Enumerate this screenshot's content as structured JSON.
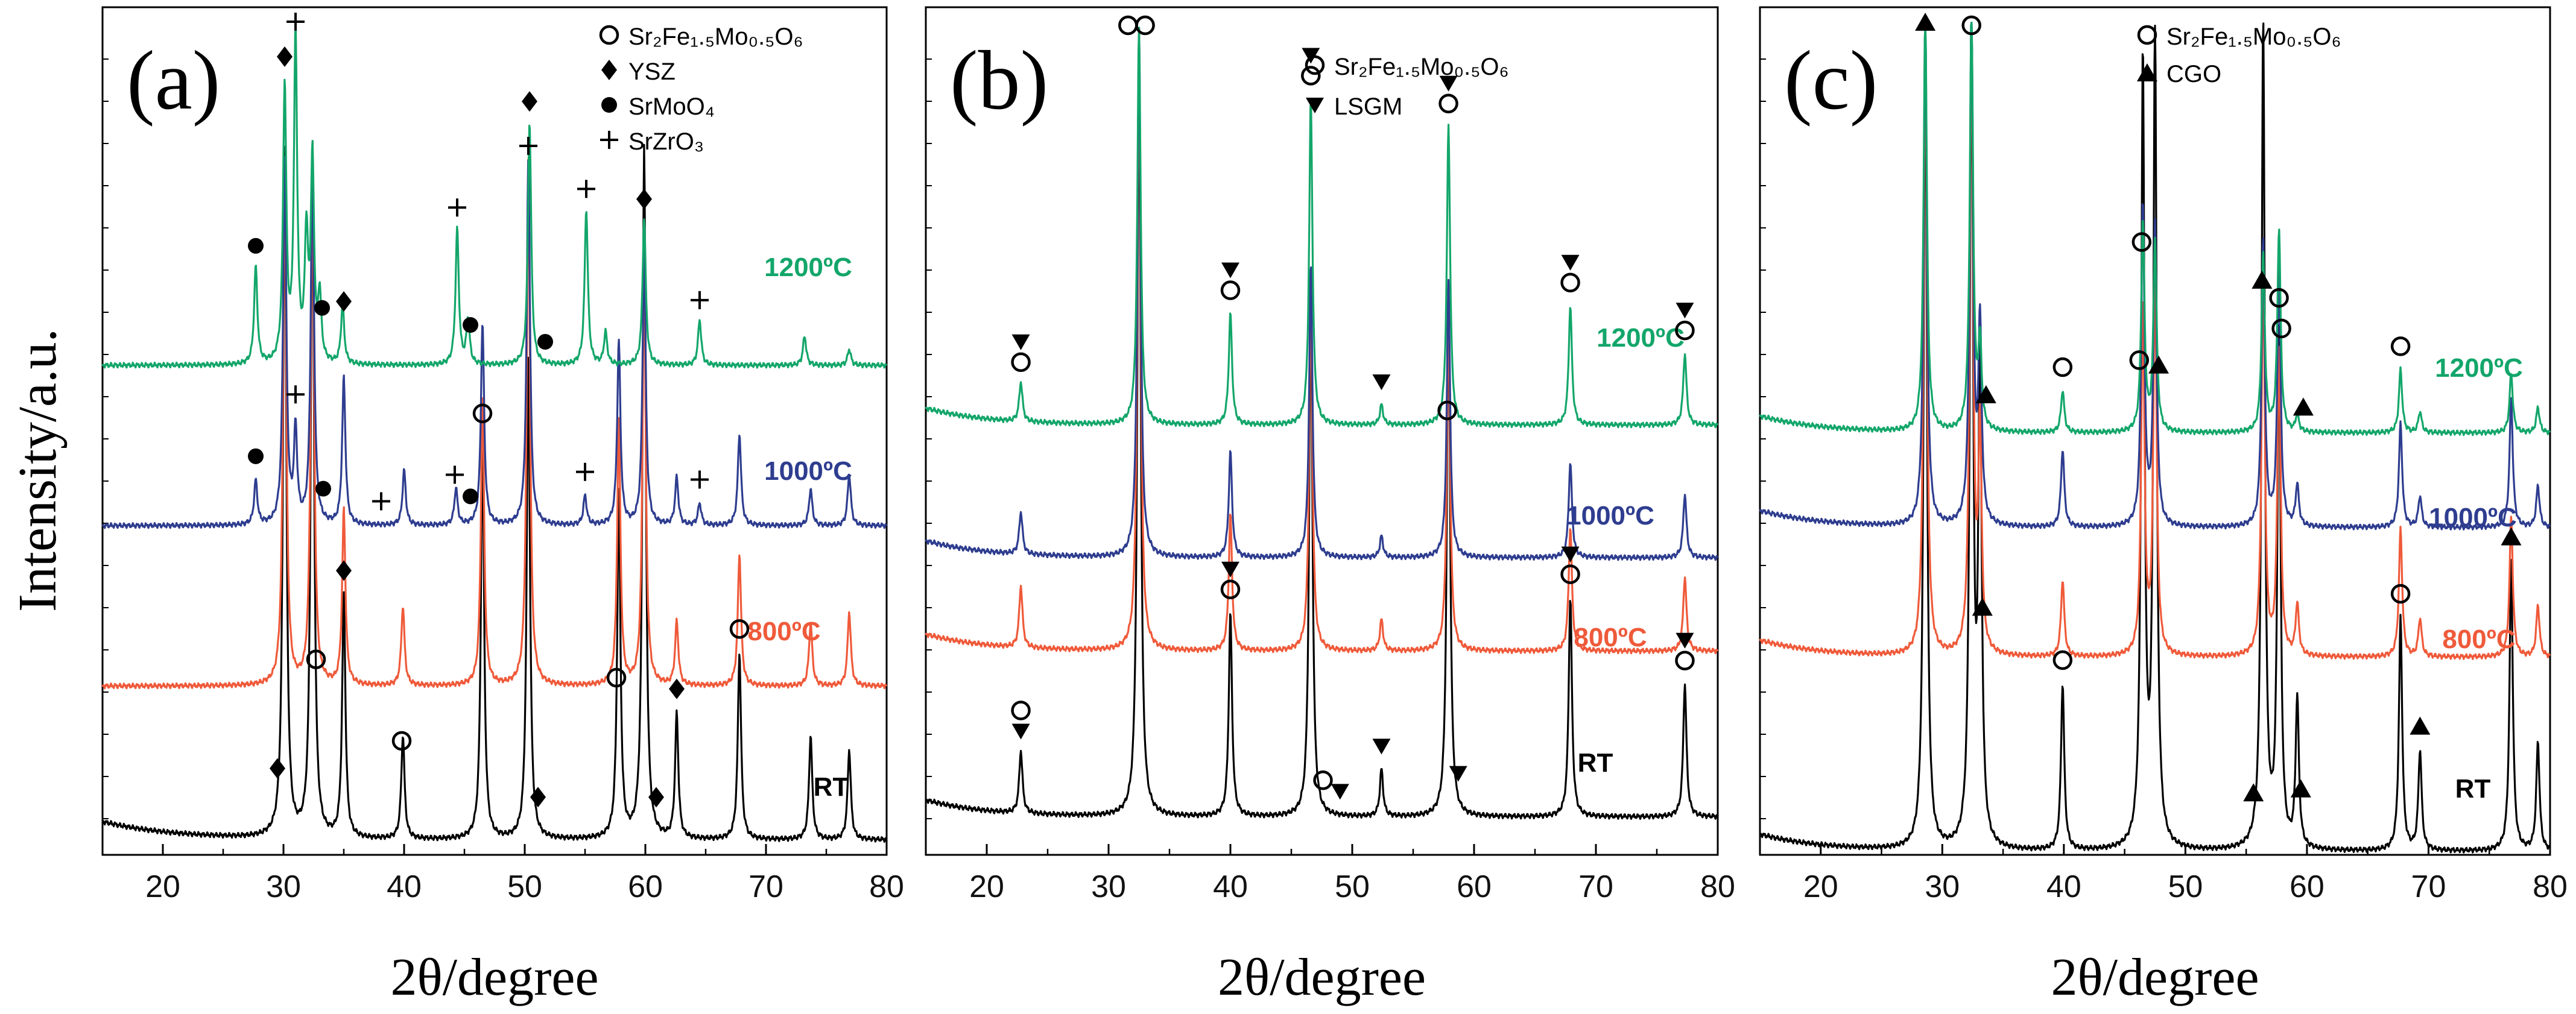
{
  "y_axis_label": "Intensity/a.u.",
  "colors": {
    "RT": "#000000",
    "800ºC": "#ef5a3a",
    "1000ºC": "#2e3d8f",
    "1200ºC": "#13a66a"
  },
  "chart_data": [
    {
      "type": "line",
      "panel": "(a)",
      "xlabel": "2θ/degree",
      "ylabel": "Intensity/a.u.",
      "xlim": [
        15,
        80
      ],
      "xticks": [
        20,
        30,
        40,
        50,
        60,
        70,
        80
      ],
      "legend": [
        {
          "marker": "open-circle",
          "label": "Sr₂Fe₁.₅Mo₀.₅O₆"
        },
        {
          "marker": "diamond",
          "label": "YSZ"
        },
        {
          "marker": "filled-circle",
          "label": "SrMoO₄"
        },
        {
          "marker": "plus",
          "label": "SrZrO₃"
        }
      ],
      "series": [
        {
          "name": "RT",
          "label": "RT",
          "peaks": [
            [
              30.1,
              1.0
            ],
            [
              32.4,
              1.0
            ],
            [
              35.0,
              0.35
            ],
            [
              39.9,
              0.15
            ],
            [
              46.5,
              0.58
            ],
            [
              50.3,
              0.7
            ],
            [
              57.8,
              0.5
            ],
            [
              59.9,
              1.0
            ],
            [
              62.6,
              0.18
            ],
            [
              67.8,
              0.27
            ],
            [
              73.7,
              0.15
            ],
            [
              76.9,
              0.13
            ]
          ]
        },
        {
          "name": "800ºC",
          "label": "800ºC",
          "peaks": [
            [
              30.1,
              1.0
            ],
            [
              32.4,
              1.0
            ],
            [
              35.0,
              0.33
            ],
            [
              39.9,
              0.15
            ],
            [
              46.5,
              0.55
            ],
            [
              50.3,
              1.0
            ],
            [
              57.8,
              0.5
            ],
            [
              59.9,
              0.8
            ],
            [
              62.6,
              0.12
            ],
            [
              67.8,
              0.25
            ],
            [
              73.7,
              0.12
            ],
            [
              76.9,
              0.14
            ]
          ]
        },
        {
          "name": "1000ºC",
          "label": "1000ºC",
          "peaks": [
            [
              27.7,
              0.12
            ],
            [
              30.1,
              1.0
            ],
            [
              31.0,
              0.25
            ],
            [
              32.4,
              1.0
            ],
            [
              35.0,
              0.4
            ],
            [
              40.0,
              0.15
            ],
            [
              44.3,
              0.1
            ],
            [
              46.5,
              0.55
            ],
            [
              50.3,
              1.0
            ],
            [
              55.0,
              0.08
            ],
            [
              57.8,
              0.5
            ],
            [
              59.9,
              0.75
            ],
            [
              62.6,
              0.13
            ],
            [
              64.5,
              0.06
            ],
            [
              67.8,
              0.25
            ],
            [
              73.7,
              0.1
            ],
            [
              76.9,
              0.14
            ]
          ]
        },
        {
          "name": "1200ºC",
          "label": "1200ºC",
          "peaks": [
            [
              27.7,
              0.3
            ],
            [
              30.1,
              0.85
            ],
            [
              31.0,
              1.0
            ],
            [
              31.9,
              0.38
            ],
            [
              32.4,
              0.62
            ],
            [
              33.0,
              0.2
            ],
            [
              34.9,
              0.18
            ],
            [
              44.4,
              0.42
            ],
            [
              45.3,
              0.14
            ],
            [
              50.4,
              0.75
            ],
            [
              55.1,
              0.48
            ],
            [
              56.7,
              0.1
            ],
            [
              59.9,
              0.45
            ],
            [
              64.5,
              0.14
            ],
            [
              73.2,
              0.09
            ],
            [
              76.9,
              0.05
            ]
          ]
        }
      ]
    },
    {
      "type": "line",
      "panel": "(b)",
      "xlabel": "2θ/degree",
      "xlim": [
        15,
        80
      ],
      "xticks": [
        20,
        30,
        40,
        50,
        60,
        70,
        80
      ],
      "legend": [
        {
          "marker": "open-circle",
          "label": "Sr₂Fe₁.₅Mo₀.₅O₆"
        },
        {
          "marker": "down-triangle",
          "label": "LSGM"
        }
      ],
      "series": [
        {
          "name": "RT",
          "label": "RT",
          "peaks": [
            [
              22.8,
              0.08
            ],
            [
              32.5,
              1.0
            ],
            [
              40.0,
              0.26
            ],
            [
              46.6,
              0.68
            ],
            [
              52.4,
              0.06
            ],
            [
              57.9,
              0.68
            ],
            [
              67.9,
              0.28
            ],
            [
              77.3,
              0.17
            ]
          ]
        },
        {
          "name": "800ºC",
          "label": "800ºC",
          "peaks": [
            [
              22.8,
              0.1
            ],
            [
              32.5,
              1.0
            ],
            [
              40.0,
              0.22
            ],
            [
              46.6,
              0.58
            ],
            [
              52.4,
              0.05
            ],
            [
              57.9,
              0.55
            ],
            [
              67.9,
              0.2
            ],
            [
              77.3,
              0.12
            ]
          ]
        },
        {
          "name": "1000ºC",
          "label": "1000ºC",
          "peaks": [
            [
              22.8,
              0.08
            ],
            [
              32.5,
              1.0
            ],
            [
              40.0,
              0.2
            ],
            [
              46.6,
              0.55
            ],
            [
              52.4,
              0.04
            ],
            [
              57.9,
              0.52
            ],
            [
              67.9,
              0.18
            ],
            [
              77.3,
              0.12
            ]
          ]
        },
        {
          "name": "1200ºC",
          "label": "1200ºC",
          "peaks": [
            [
              22.8,
              0.1
            ],
            [
              32.5,
              1.0
            ],
            [
              40.0,
              0.28
            ],
            [
              46.6,
              0.82
            ],
            [
              52.4,
              0.05
            ],
            [
              57.9,
              0.75
            ],
            [
              67.9,
              0.3
            ],
            [
              77.3,
              0.18
            ]
          ]
        }
      ]
    },
    {
      "type": "line",
      "panel": "(c)",
      "xlabel": "2θ/degree",
      "xlim": [
        15,
        80
      ],
      "xticks": [
        20,
        30,
        40,
        50,
        60,
        70,
        80
      ],
      "legend": [
        {
          "marker": "open-circle",
          "label": "Sr₂Fe₁.₅Mo₀.₅O₆"
        },
        {
          "marker": "up-triangle",
          "label": "CGO"
        }
      ],
      "series": [
        {
          "name": "RT",
          "label": "RT",
          "peaks": [
            [
              28.6,
              1.0
            ],
            [
              32.4,
              1.0
            ],
            [
              33.1,
              0.6
            ],
            [
              39.9,
              0.2
            ],
            [
              46.5,
              0.95
            ],
            [
              47.5,
              1.0
            ],
            [
              56.4,
              1.0
            ],
            [
              57.7,
              0.62
            ],
            [
              59.2,
              0.18
            ],
            [
              67.7,
              0.28
            ],
            [
              69.3,
              0.12
            ],
            [
              76.8,
              0.35
            ],
            [
              79.0,
              0.13
            ]
          ]
        },
        {
          "name": "800ºC",
          "label": "800ºC",
          "peaks": [
            [
              28.6,
              1.0
            ],
            [
              32.4,
              1.0
            ],
            [
              33.1,
              0.35
            ],
            [
              39.9,
              0.12
            ],
            [
              46.5,
              0.55
            ],
            [
              47.5,
              0.6
            ],
            [
              56.4,
              0.62
            ],
            [
              57.7,
              0.48
            ],
            [
              59.2,
              0.08
            ],
            [
              67.7,
              0.2
            ],
            [
              69.3,
              0.06
            ],
            [
              76.8,
              0.22
            ],
            [
              79.0,
              0.08
            ]
          ]
        },
        {
          "name": "1000ºC",
          "label": "1000ºC",
          "peaks": [
            [
              28.6,
              1.0
            ],
            [
              32.4,
              1.0
            ],
            [
              33.1,
              0.38
            ],
            [
              39.9,
              0.15
            ],
            [
              46.5,
              0.62
            ],
            [
              47.5,
              0.58
            ],
            [
              56.4,
              0.55
            ],
            [
              57.7,
              0.5
            ],
            [
              59.2,
              0.08
            ],
            [
              67.7,
              0.2
            ],
            [
              69.3,
              0.06
            ],
            [
              76.8,
              0.25
            ],
            [
              79.0,
              0.08
            ]
          ]
        },
        {
          "name": "1200ºC",
          "label": "1200ºC",
          "peaks": [
            [
              28.6,
              1.0
            ],
            [
              32.4,
              1.0
            ],
            [
              33.1,
              0.2
            ],
            [
              39.9,
              0.1
            ],
            [
              46.5,
              0.5
            ],
            [
              47.5,
              0.45
            ],
            [
              56.4,
              0.42
            ],
            [
              57.7,
              0.48
            ],
            [
              59.2,
              0.04
            ],
            [
              67.7,
              0.15
            ],
            [
              69.3,
              0.05
            ],
            [
              76.8,
              0.14
            ],
            [
              79.0,
              0.06
            ]
          ]
        }
      ]
    }
  ],
  "annotations": [
    [
      {
        "x": 27.7,
        "s": "1200ºC",
        "m": "filled-circle"
      },
      {
        "x": 30.1,
        "s": "1200ºC",
        "m": "diamond"
      },
      {
        "x": 31.0,
        "s": "1200ºC",
        "m": "plus"
      },
      {
        "x": 33.2,
        "s": "1200ºC",
        "m": "filled-circle"
      },
      {
        "x": 35.0,
        "s": "1200ºC",
        "m": "diamond"
      },
      {
        "x": 44.4,
        "s": "1200ºC",
        "m": "plus"
      },
      {
        "x": 45.5,
        "s": "1200ºC",
        "m": "filled-circle"
      },
      {
        "x": 50.4,
        "s": "1200ºC",
        "m": "diamond"
      },
      {
        "x": 50.3,
        "s": "1200ºC",
        "m": "plus",
        "extra": 40
      },
      {
        "x": 51.7,
        "s": "1200ºC",
        "m": "filled-circle"
      },
      {
        "x": 55.1,
        "s": "1200ºC",
        "m": "plus"
      },
      {
        "x": 59.9,
        "s": "1200ºC",
        "m": "diamond"
      },
      {
        "x": 64.5,
        "s": "1200ºC",
        "m": "plus"
      },
      {
        "x": 27.7,
        "s": "1000ºC",
        "m": "filled-circle"
      },
      {
        "x": 31.0,
        "s": "1000ºC",
        "m": "plus"
      },
      {
        "x": 33.3,
        "s": "1000ºC",
        "m": "filled-circle"
      },
      {
        "x": 38.1,
        "s": "1000ºC",
        "m": "plus"
      },
      {
        "x": 44.2,
        "s": "1000ºC",
        "m": "plus"
      },
      {
        "x": 45.5,
        "s": "1000ºC",
        "m": "filled-circle"
      },
      {
        "x": 55.0,
        "s": "1000ºC",
        "m": "plus"
      },
      {
        "x": 64.5,
        "s": "1000ºC",
        "m": "plus"
      },
      {
        "x": 29.5,
        "s": "RT",
        "m": "diamond"
      },
      {
        "x": 32.7,
        "s": "RT",
        "m": "open-circle"
      },
      {
        "x": 35.0,
        "s": "RT",
        "m": "diamond"
      },
      {
        "x": 39.8,
        "s": "RT",
        "m": "open-circle"
      },
      {
        "x": 46.5,
        "s": "RT",
        "m": "open-circle"
      },
      {
        "x": 51.1,
        "s": "RT",
        "m": "diamond"
      },
      {
        "x": 57.6,
        "s": "RT",
        "m": "open-circle"
      },
      {
        "x": 60.9,
        "s": "RT",
        "m": "diamond"
      },
      {
        "x": 62.6,
        "s": "RT",
        "m": "diamond"
      },
      {
        "x": 67.8,
        "s": "RT",
        "m": "open-circle"
      }
    ],
    [
      {
        "x": 31.6,
        "s": "1200ºC",
        "m": "open-circle",
        "top": true
      },
      {
        "x": 33.0,
        "s": "1200ºC",
        "m": "open-circle",
        "top": true
      },
      {
        "x": 22.8,
        "s": "1200ºC",
        "m": "open-circle"
      },
      {
        "x": 22.8,
        "s": "1200ºC",
        "m": "down-triangle",
        "extra": 34
      },
      {
        "x": 40.0,
        "s": "1200ºC",
        "m": "open-circle"
      },
      {
        "x": 40.0,
        "s": "1200ºC",
        "m": "down-triangle",
        "extra": 34
      },
      {
        "x": 46.6,
        "s": "1200ºC",
        "m": "open-circle"
      },
      {
        "x": 46.6,
        "s": "1200ºC",
        "m": "down-triangle",
        "extra": 34
      },
      {
        "x": 52.4,
        "s": "1200ºC",
        "m": "down-triangle"
      },
      {
        "x": 57.9,
        "s": "1200ºC",
        "m": "open-circle"
      },
      {
        "x": 57.9,
        "s": "1200ºC",
        "m": "down-triangle",
        "extra": 34
      },
      {
        "x": 67.9,
        "s": "1200ºC",
        "m": "open-circle"
      },
      {
        "x": 67.9,
        "s": "1200ºC",
        "m": "down-triangle",
        "extra": 34
      },
      {
        "x": 77.3,
        "s": "1200ºC",
        "m": "open-circle"
      },
      {
        "x": 77.3,
        "s": "1200ºC",
        "m": "down-triangle",
        "extra": 34
      },
      {
        "x": 22.8,
        "s": "RT",
        "m": "down-triangle"
      },
      {
        "x": 22.8,
        "s": "RT",
        "m": "open-circle",
        "extra": 34
      },
      {
        "x": 40.0,
        "s": "RT",
        "m": "open-circle"
      },
      {
        "x": 40.0,
        "s": "RT",
        "m": "down-triangle",
        "extra": 34
      },
      {
        "x": 47.6,
        "s": "RT",
        "m": "open-circle"
      },
      {
        "x": 49.0,
        "s": "RT",
        "m": "down-triangle"
      },
      {
        "x": 52.4,
        "s": "RT",
        "m": "down-triangle"
      },
      {
        "x": 57.8,
        "s": "RT",
        "m": "open-circle"
      },
      {
        "x": 58.7,
        "s": "RT",
        "m": "down-triangle"
      },
      {
        "x": 67.9,
        "s": "RT",
        "m": "open-circle"
      },
      {
        "x": 67.9,
        "s": "RT",
        "m": "down-triangle",
        "extra": 34
      },
      {
        "x": 77.3,
        "s": "RT",
        "m": "open-circle"
      },
      {
        "x": 77.3,
        "s": "RT",
        "m": "down-triangle",
        "extra": 34
      }
    ],
    [
      {
        "x": 32.4,
        "s": "1200ºC",
        "m": "open-circle",
        "top": true
      },
      {
        "x": 28.6,
        "s": "1200ºC",
        "m": "up-triangle"
      },
      {
        "x": 33.6,
        "s": "1200ºC",
        "m": "up-triangle"
      },
      {
        "x": 39.9,
        "s": "1200ºC",
        "m": "open-circle"
      },
      {
        "x": 46.2,
        "s": "1200ºC",
        "m": "open-circle"
      },
      {
        "x": 47.8,
        "s": "1200ºC",
        "m": "up-triangle"
      },
      {
        "x": 56.3,
        "s": "1200ºC",
        "m": "up-triangle"
      },
      {
        "x": 57.9,
        "s": "1200ºC",
        "m": "open-circle"
      },
      {
        "x": 59.7,
        "s": "1200ºC",
        "m": "up-triangle"
      },
      {
        "x": 67.7,
        "s": "1200ºC",
        "m": "open-circle"
      },
      {
        "x": 33.3,
        "s": "RT",
        "m": "up-triangle"
      },
      {
        "x": 39.9,
        "s": "RT",
        "m": "open-circle"
      },
      {
        "x": 46.4,
        "s": "RT",
        "m": "open-circle"
      },
      {
        "x": 55.6,
        "s": "RT",
        "m": "up-triangle"
      },
      {
        "x": 57.7,
        "s": "RT",
        "m": "open-circle"
      },
      {
        "x": 59.5,
        "s": "RT",
        "m": "up-triangle"
      },
      {
        "x": 67.7,
        "s": "RT",
        "m": "open-circle"
      },
      {
        "x": 69.3,
        "s": "RT",
        "m": "up-triangle"
      },
      {
        "x": 76.8,
        "s": "RT",
        "m": "up-triangle"
      }
    ]
  ]
}
